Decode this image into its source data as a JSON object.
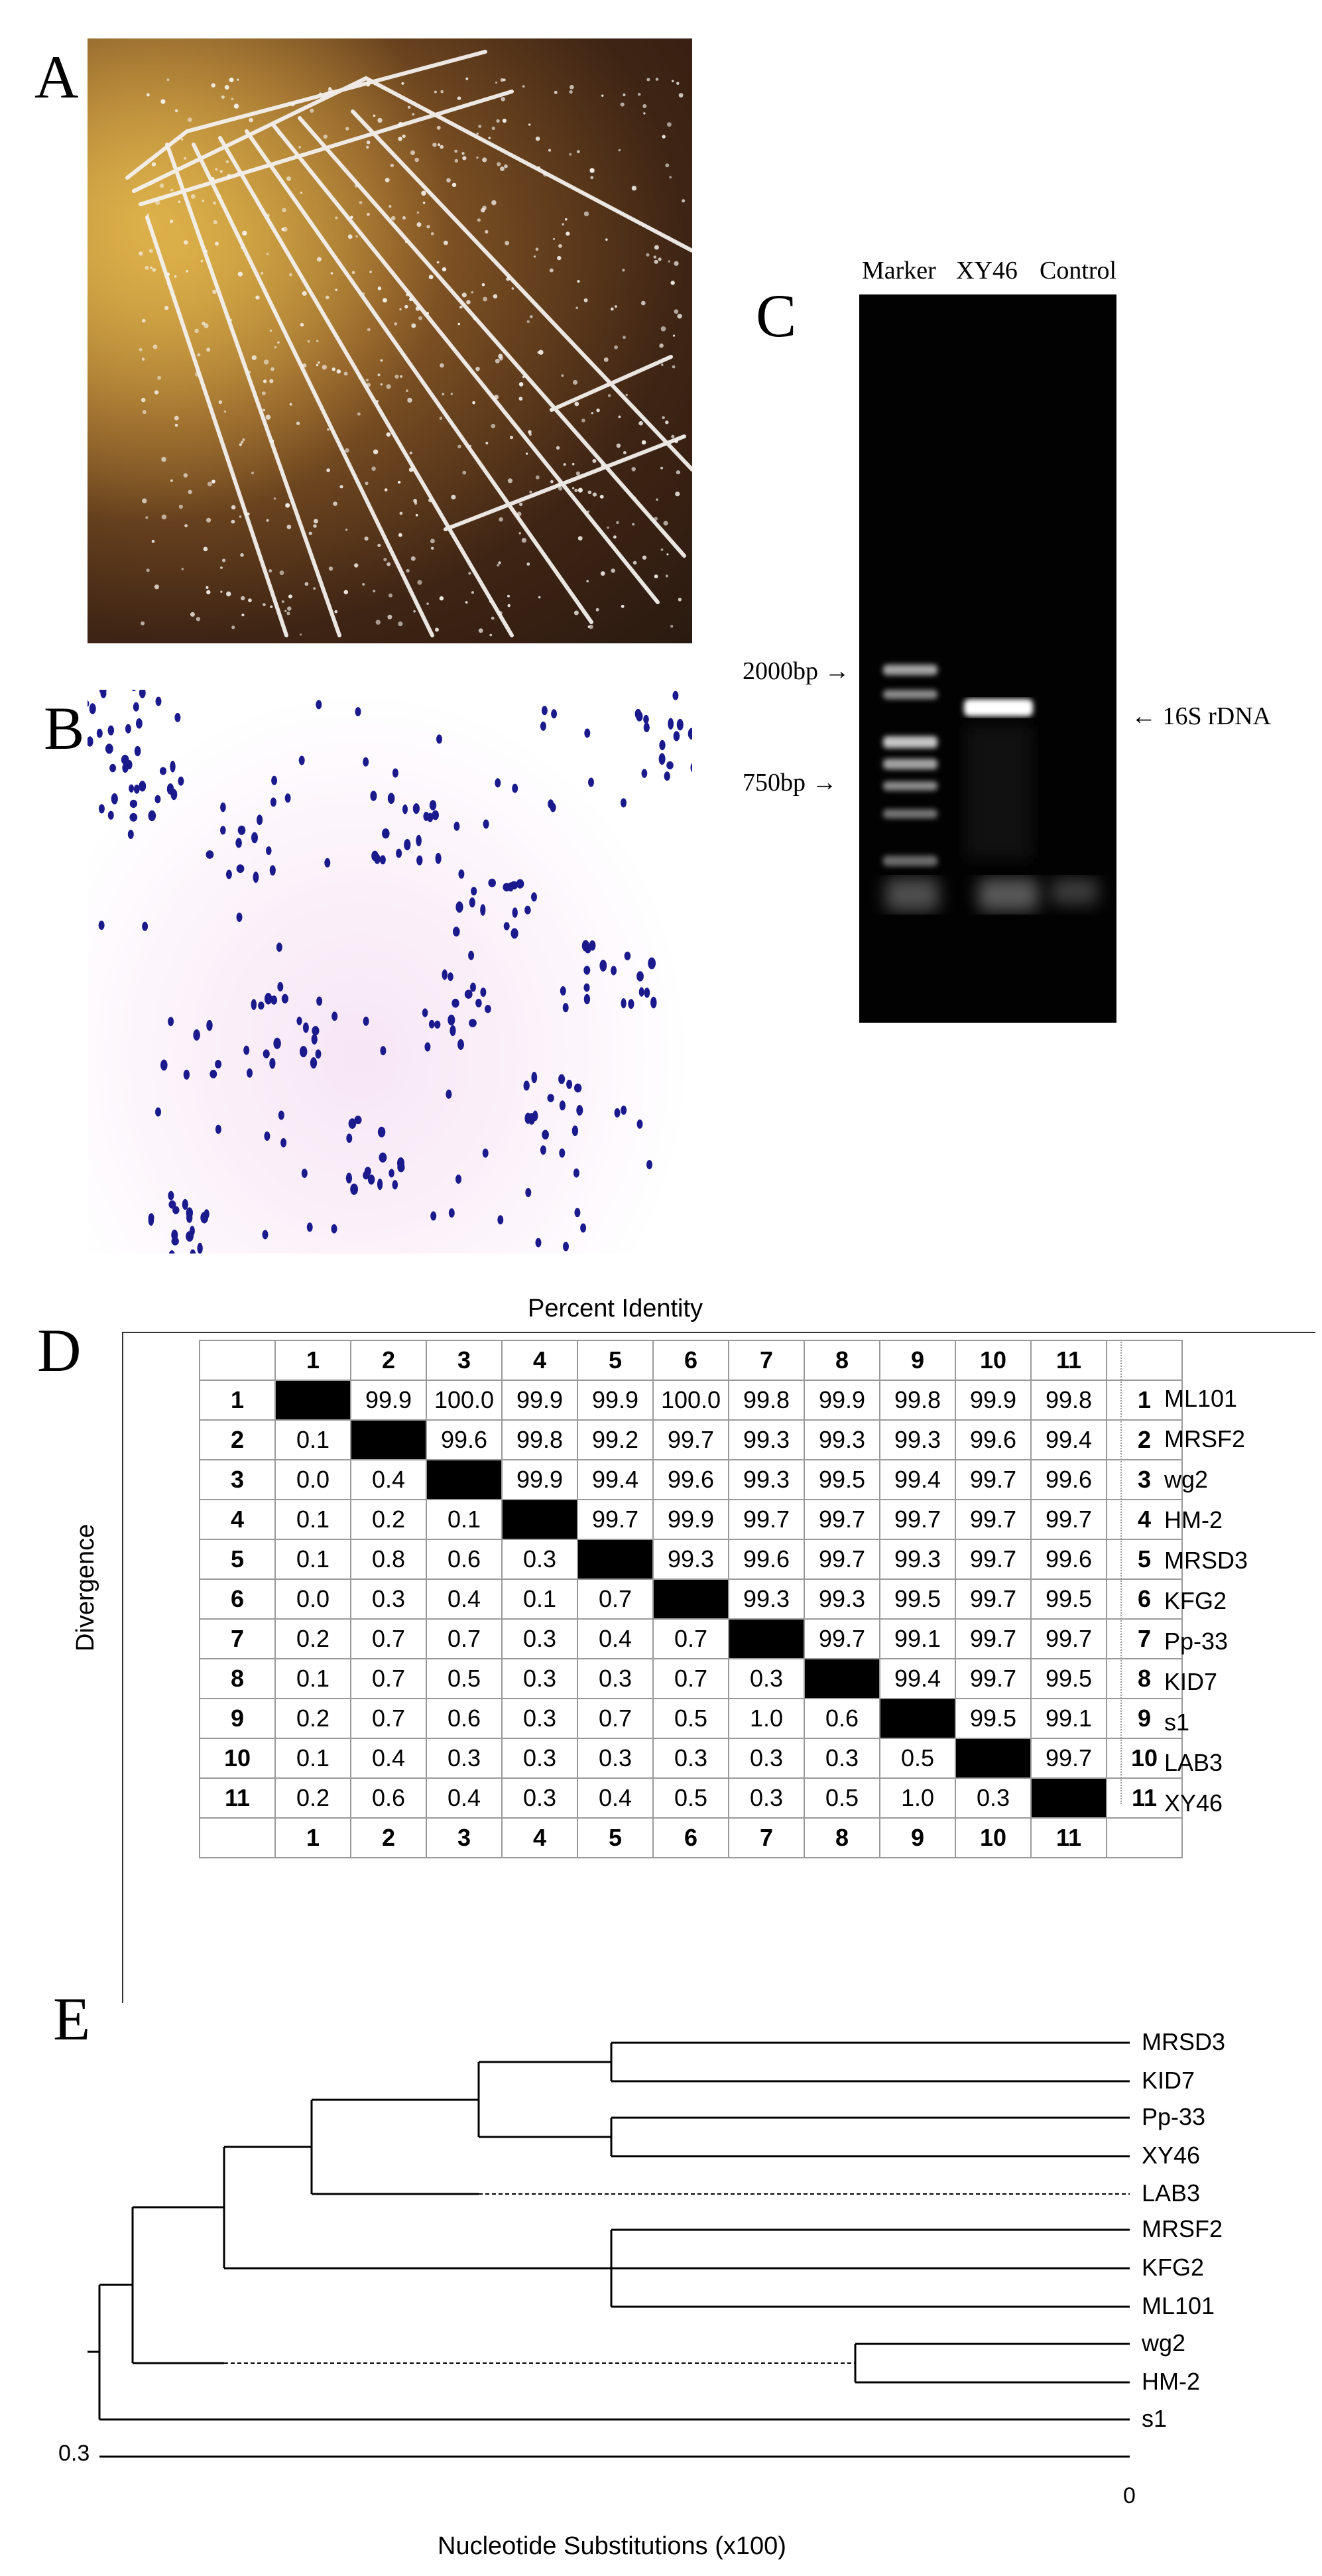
{
  "panel_labels": {
    "a": "A",
    "b": "B",
    "c": "C",
    "d": "D",
    "e": "E"
  },
  "panel_c": {
    "lanes": [
      "Marker",
      "XY46",
      "Control"
    ],
    "marker_2000": "2000bp →",
    "marker_750": "750bp →",
    "band_label": "← 16S rDNA"
  },
  "panel_d": {
    "title": "Percent Identity",
    "side_label": "Divergence",
    "indices": [
      "1",
      "2",
      "3",
      "4",
      "5",
      "6",
      "7",
      "8",
      "9",
      "10",
      "11"
    ],
    "names": [
      "ML101",
      "MRSF2",
      "wg2",
      "HM-2",
      "MRSD3",
      "KFG2",
      "Pp-33",
      "KID7",
      "s1",
      "LAB3",
      "XY46"
    ],
    "rows": [
      [
        "",
        "99.9",
        "100.0",
        "99.9",
        "99.9",
        "100.0",
        "99.8",
        "99.9",
        "99.8",
        "99.9",
        "99.8"
      ],
      [
        "0.1",
        "",
        "99.6",
        "99.8",
        "99.2",
        "99.7",
        "99.3",
        "99.3",
        "99.3",
        "99.6",
        "99.4"
      ],
      [
        "0.0",
        "0.4",
        "",
        "99.9",
        "99.4",
        "99.6",
        "99.3",
        "99.5",
        "99.4",
        "99.7",
        "99.6"
      ],
      [
        "0.1",
        "0.2",
        "0.1",
        "",
        "99.7",
        "99.9",
        "99.7",
        "99.7",
        "99.7",
        "99.7",
        "99.7"
      ],
      [
        "0.1",
        "0.8",
        "0.6",
        "0.3",
        "",
        "99.3",
        "99.6",
        "99.7",
        "99.3",
        "99.7",
        "99.6"
      ],
      [
        "0.0",
        "0.3",
        "0.4",
        "0.1",
        "0.7",
        "",
        "99.3",
        "99.3",
        "99.5",
        "99.7",
        "99.5"
      ],
      [
        "0.2",
        "0.7",
        "0.7",
        "0.3",
        "0.4",
        "0.7",
        "",
        "99.7",
        "99.1",
        "99.7",
        "99.7"
      ],
      [
        "0.1",
        "0.7",
        "0.5",
        "0.3",
        "0.3",
        "0.7",
        "0.3",
        "",
        "99.4",
        "99.7",
        "99.5"
      ],
      [
        "0.2",
        "0.7",
        "0.6",
        "0.3",
        "0.7",
        "0.5",
        "1.0",
        "0.6",
        "",
        "99.5",
        "99.1"
      ],
      [
        "0.1",
        "0.4",
        "0.3",
        "0.3",
        "0.3",
        "0.3",
        "0.3",
        "0.3",
        "0.5",
        "",
        "99.7"
      ],
      [
        "0.2",
        "0.6",
        "0.4",
        "0.3",
        "0.4",
        "0.5",
        "0.3",
        "0.5",
        "1.0",
        "0.3",
        ""
      ]
    ]
  },
  "panel_e": {
    "leaves": [
      "MRSD3",
      "KID7",
      "Pp-33",
      "XY46",
      "LAB3",
      "MRSF2",
      "KFG2",
      "ML101",
      "wg2",
      "HM-2",
      "s1"
    ],
    "scale_left": "0.3",
    "scale_right": "0",
    "axis_label": "Nucleotide Substitutions (x100)"
  }
}
